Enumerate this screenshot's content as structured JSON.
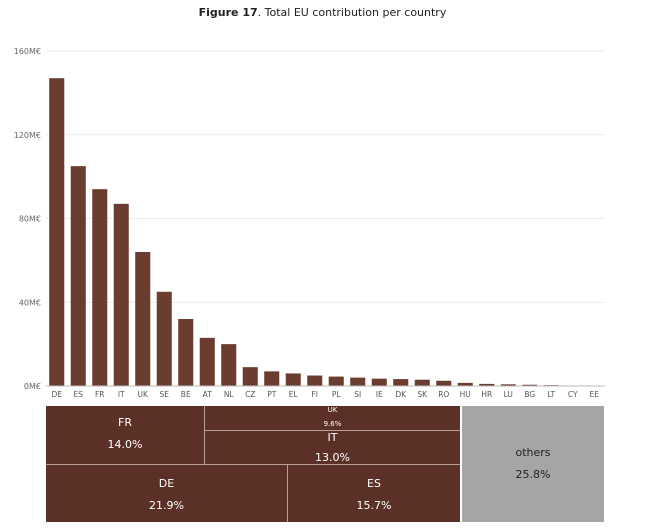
{
  "title_bold": "Figure 17",
  "title_rest": ". Total EU contribution per country",
  "colors": {
    "bar": "#6b3c30",
    "tree": "#5b3026",
    "others": "#a5a5a5",
    "grid": "#e4e4e4"
  },
  "chart_data": [
    {
      "type": "bar",
      "title": "Figure 17. Total EU contribution per country",
      "categories": [
        "DE",
        "ES",
        "FR",
        "IT",
        "UK",
        "SE",
        "BE",
        "AT",
        "NL",
        "CZ",
        "PT",
        "EL",
        "FI",
        "PL",
        "SI",
        "IE",
        "DK",
        "SK",
        "RO",
        "HU",
        "HR",
        "LU",
        "BG",
        "LT",
        "CY",
        "EE"
      ],
      "values": [
        147,
        105,
        94,
        87,
        64,
        45,
        32,
        23,
        20,
        9,
        7,
        6,
        5,
        4.5,
        4,
        3.5,
        3.3,
        3,
        2.5,
        1.5,
        1,
        0.8,
        0.6,
        0.4,
        0.1,
        0.1
      ],
      "unit": "M€",
      "yticks": [
        "0M€",
        "40M€",
        "80M€",
        "120M€",
        "160M€"
      ],
      "ylim": [
        0,
        160
      ],
      "grid": true
    },
    {
      "type": "treemap",
      "cells": [
        {
          "name": "DE",
          "share": "21.9%"
        },
        {
          "name": "ES",
          "share": "15.7%"
        },
        {
          "name": "FR",
          "share": "14.0%"
        },
        {
          "name": "IT",
          "share": "13.0%"
        },
        {
          "name": "UK",
          "share": "9.6%"
        },
        {
          "name": "others",
          "share": "25.8%"
        }
      ]
    }
  ]
}
